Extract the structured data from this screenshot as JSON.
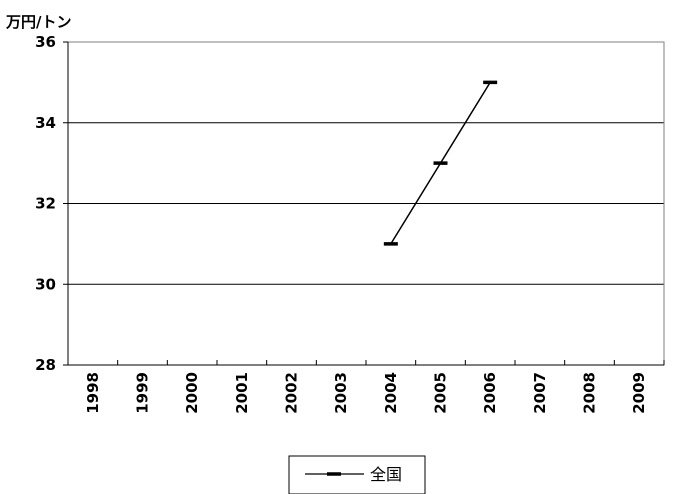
{
  "chart_data": {
    "type": "line",
    "y_unit_label": "万円/トン",
    "x": [
      "1998",
      "1999",
      "2000",
      "2001",
      "2002",
      "2003",
      "2004",
      "2005",
      "2006",
      "2007",
      "2008",
      "2009"
    ],
    "ylim": [
      28,
      36
    ],
    "yticks": [
      28,
      30,
      32,
      34,
      36
    ],
    "grid": true,
    "legend_position": "bottom-center",
    "series": [
      {
        "name": "全国",
        "color": "#000000",
        "values": [
          null,
          null,
          null,
          null,
          null,
          null,
          31,
          33,
          35,
          null,
          null,
          null
        ]
      }
    ]
  }
}
